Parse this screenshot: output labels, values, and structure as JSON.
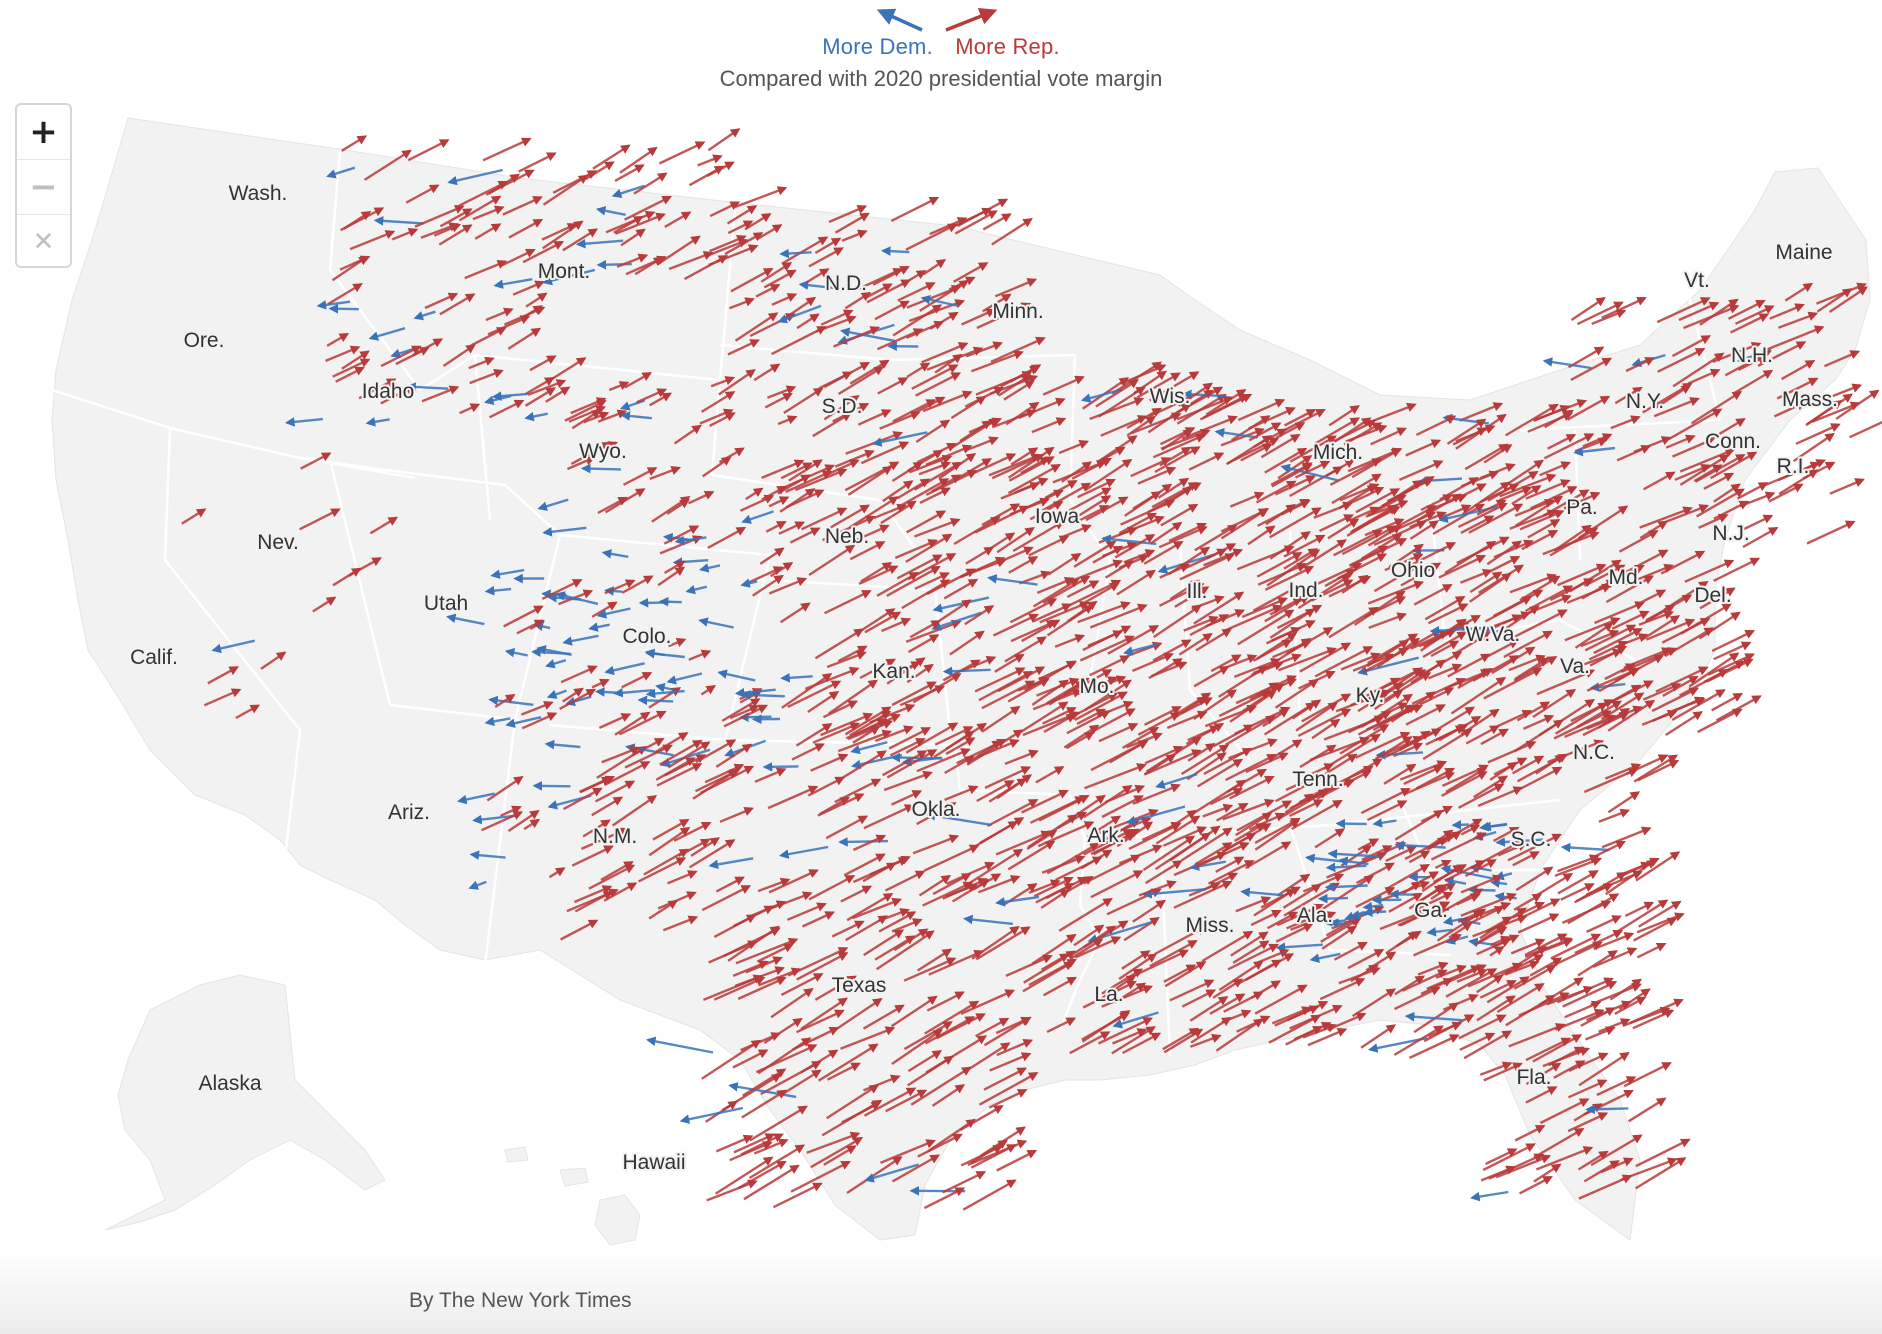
{
  "legend": {
    "dem_label": "More Dem.",
    "rep_label": "More Rep.",
    "subtitle": "Compared with 2020 presidential vote margin"
  },
  "colors": {
    "dem": "#3a73b8",
    "rep": "#b83a3a",
    "land": "#f2f2f2",
    "border": "#ffffff"
  },
  "zoom": {
    "zoom_in_icon": "plus-icon",
    "zoom_out_icon": "minus-icon",
    "reset_icon": "close-icon"
  },
  "states": [
    "Wash.",
    "Mont.",
    "N.D.",
    "Minn.",
    "Ore.",
    "Idaho",
    "S.D.",
    "Wis.",
    "Wyo.",
    "Mich.",
    "Nev.",
    "Iowa",
    "Neb.",
    "Utah",
    "Ill.",
    "Ind.",
    "Ohio",
    "Calif.",
    "Colo.",
    "Kan.",
    "Mo.",
    "Ky.",
    "W.Va.",
    "Va.",
    "Okla.",
    "Tenn.",
    "Ariz.",
    "N.M.",
    "Ark.",
    "Miss.",
    "Ala.",
    "Ga.",
    "S.C.",
    "N.C.",
    "Texas",
    "La.",
    "Fla.",
    "Alaska",
    "Hawaii",
    "Maine",
    "Vt.",
    "N.H.",
    "N.Y.",
    "Mass.",
    "Conn.",
    "R.I.",
    "Pa.",
    "N.J.",
    "Md.",
    "Del."
  ],
  "credit": "By The New York Times"
}
